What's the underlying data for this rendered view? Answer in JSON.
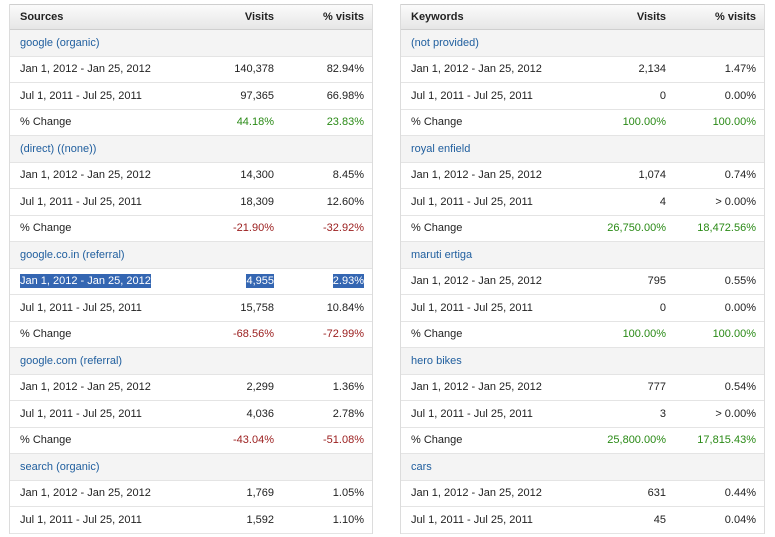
{
  "sources": {
    "headers": [
      "Sources",
      "Visits",
      "% visits"
    ],
    "groups": [
      {
        "title": "google (organic)",
        "rows": [
          {
            "label": "Jan 1, 2012 - Jan 25, 2012",
            "visits": "140,378",
            "pct": "82.94%"
          },
          {
            "label": "Jul 1, 2011 - Jul 25, 2011",
            "visits": "97,365",
            "pct": "66.98%"
          },
          {
            "label": "% Change",
            "visits": "44.18%",
            "pct": "23.83%",
            "change": "pos"
          }
        ]
      },
      {
        "title": "(direct) ((none))",
        "rows": [
          {
            "label": "Jan 1, 2012 - Jan 25, 2012",
            "visits": "14,300",
            "pct": "8.45%"
          },
          {
            "label": "Jul 1, 2011 - Jul 25, 2011",
            "visits": "18,309",
            "pct": "12.60%"
          },
          {
            "label": "% Change",
            "visits": "-21.90%",
            "pct": "-32.92%",
            "change": "neg"
          }
        ]
      },
      {
        "title": "google.co.in (referral)",
        "rows": [
          {
            "label": "Jan 1, 2012 - Jan 25, 2012",
            "visits": "4,955",
            "pct": "2.93%",
            "selected": true
          },
          {
            "label": "Jul 1, 2011 - Jul 25, 2011",
            "visits": "15,758",
            "pct": "10.84%"
          },
          {
            "label": "% Change",
            "visits": "-68.56%",
            "pct": "-72.99%",
            "change": "neg"
          }
        ]
      },
      {
        "title": "google.com (referral)",
        "rows": [
          {
            "label": "Jan 1, 2012 - Jan 25, 2012",
            "visits": "2,299",
            "pct": "1.36%"
          },
          {
            "label": "Jul 1, 2011 - Jul 25, 2011",
            "visits": "4,036",
            "pct": "2.78%"
          },
          {
            "label": "% Change",
            "visits": "-43.04%",
            "pct": "-51.08%",
            "change": "neg"
          }
        ]
      },
      {
        "title": "search (organic)",
        "rows": [
          {
            "label": "Jan 1, 2012 - Jan 25, 2012",
            "visits": "1,769",
            "pct": "1.05%"
          },
          {
            "label": "Jul 1, 2011 - Jul 25, 2011",
            "visits": "1,592",
            "pct": "1.10%"
          }
        ]
      }
    ]
  },
  "keywords": {
    "headers": [
      "Keywords",
      "Visits",
      "% visits"
    ],
    "groups": [
      {
        "title": "(not provided)",
        "rows": [
          {
            "label": "Jan 1, 2012 - Jan 25, 2012",
            "visits": "2,134",
            "pct": "1.47%"
          },
          {
            "label": "Jul 1, 2011 - Jul 25, 2011",
            "visits": "0",
            "pct": "0.00%"
          },
          {
            "label": "% Change",
            "visits": "100.00%",
            "pct": "100.00%",
            "change": "pos"
          }
        ]
      },
      {
        "title": "royal enfield",
        "rows": [
          {
            "label": "Jan 1, 2012 - Jan 25, 2012",
            "visits": "1,074",
            "pct": "0.74%"
          },
          {
            "label": "Jul 1, 2011 - Jul 25, 2011",
            "visits": "4",
            "pct": "> 0.00%"
          },
          {
            "label": "% Change",
            "visits": "26,750.00%",
            "pct": "18,472.56%",
            "change": "pos"
          }
        ]
      },
      {
        "title": "maruti ertiga",
        "rows": [
          {
            "label": "Jan 1, 2012 - Jan 25, 2012",
            "visits": "795",
            "pct": "0.55%"
          },
          {
            "label": "Jul 1, 2011 - Jul 25, 2011",
            "visits": "0",
            "pct": "0.00%"
          },
          {
            "label": "% Change",
            "visits": "100.00%",
            "pct": "100.00%",
            "change": "pos"
          }
        ]
      },
      {
        "title": "hero bikes",
        "rows": [
          {
            "label": "Jan 1, 2012 - Jan 25, 2012",
            "visits": "777",
            "pct": "0.54%"
          },
          {
            "label": "Jul 1, 2011 - Jul 25, 2011",
            "visits": "3",
            "pct": "> 0.00%"
          },
          {
            "label": "% Change",
            "visits": "25,800.00%",
            "pct": "17,815.43%",
            "change": "pos"
          }
        ]
      },
      {
        "title": "cars",
        "rows": [
          {
            "label": "Jan 1, 2012 - Jan 25, 2012",
            "visits": "631",
            "pct": "0.44%"
          },
          {
            "label": "Jul 1, 2011 - Jul 25, 2011",
            "visits": "45",
            "pct": "0.04%"
          }
        ]
      }
    ]
  },
  "colors": {
    "title_link": "#1f5e9e",
    "positive_change": "#2a8a16",
    "negative_change": "#9a1c1c",
    "selection": "#3466b2"
  }
}
